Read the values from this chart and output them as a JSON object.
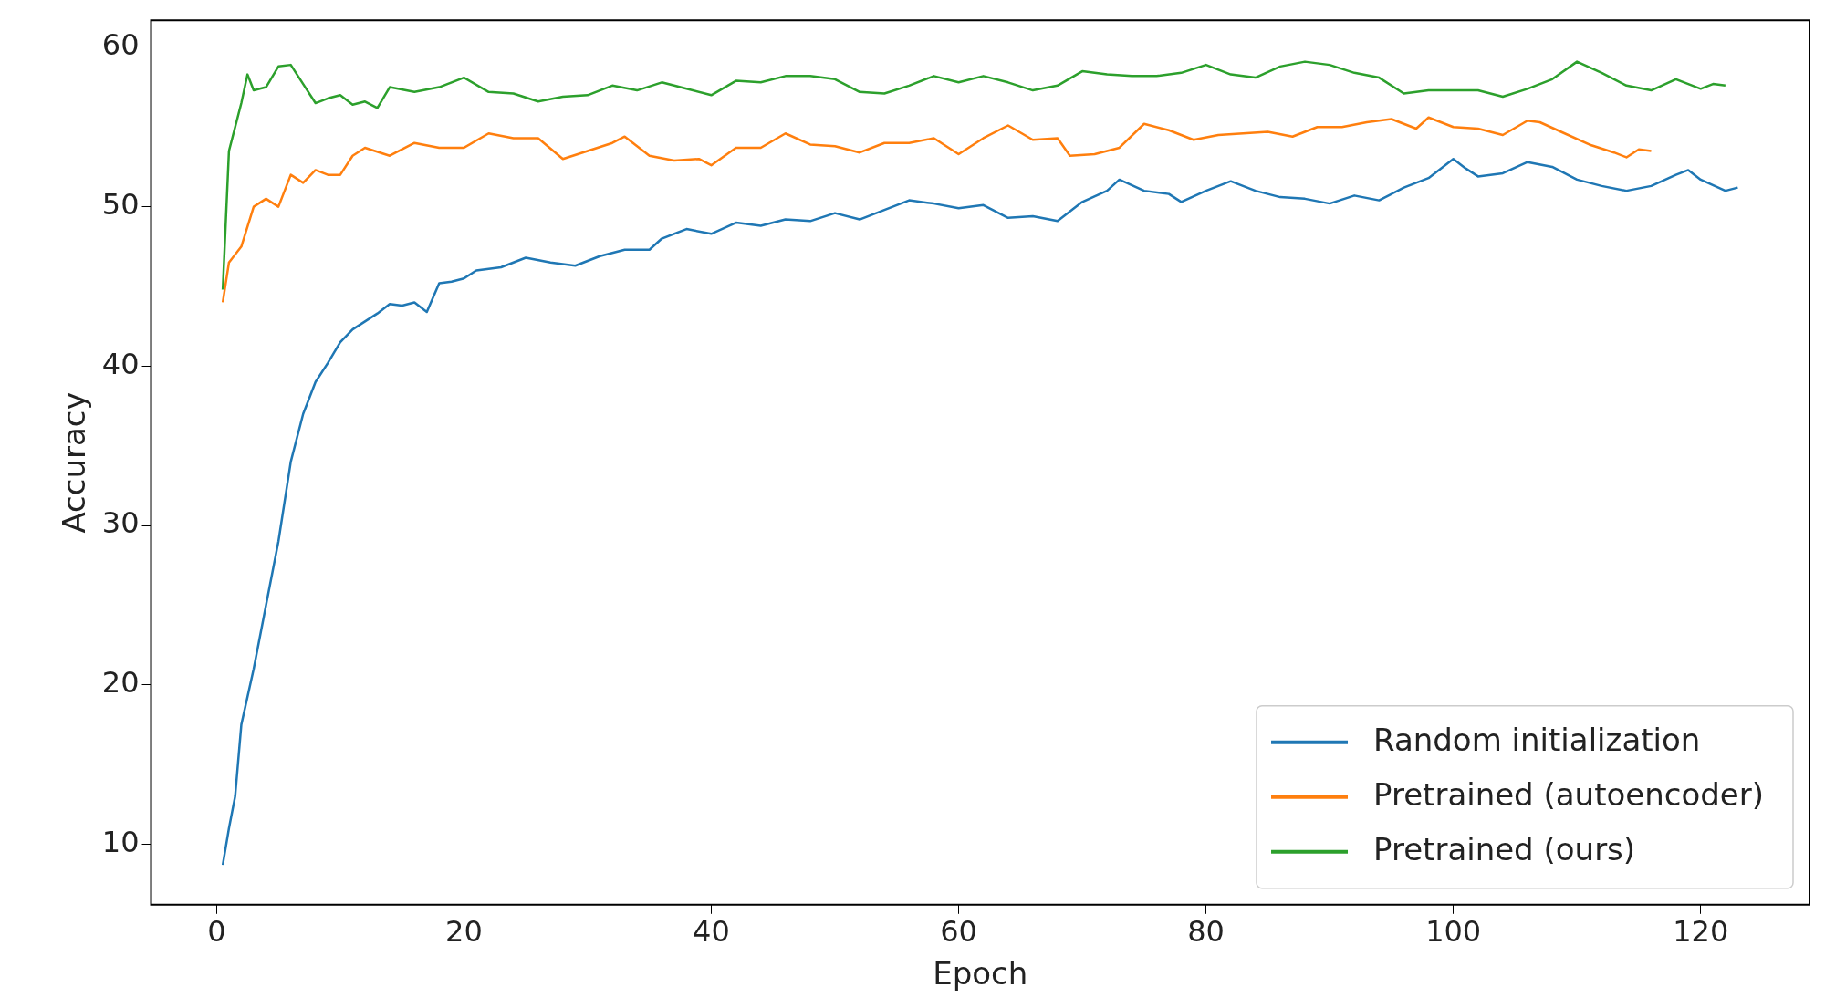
{
  "chart_data": {
    "type": "line",
    "xlabel": "Epoch",
    "ylabel": "Accuracy",
    "xlim": [
      -5.3,
      128.8
    ],
    "ylim": [
      6.2,
      61.7
    ],
    "xticks": [
      0,
      20,
      40,
      60,
      80,
      100,
      120
    ],
    "yticks": [
      10,
      20,
      30,
      40,
      50,
      60
    ],
    "grid": false,
    "legend": "bottom right",
    "marker": "none",
    "line_style": "solid",
    "series": [
      {
        "name": "Random initialization",
        "color": "#1f77b4",
        "x": [
          0.5,
          1,
          1.5,
          2,
          3,
          4,
          5,
          6,
          7,
          8,
          9,
          10,
          11,
          12,
          13,
          14,
          15,
          16,
          17,
          18,
          19,
          20,
          21,
          23,
          25,
          27,
          29,
          31,
          33,
          35,
          36,
          38,
          40,
          42,
          44,
          46,
          48,
          50,
          52,
          54,
          56,
          58,
          60,
          62,
          64,
          66,
          68,
          70,
          72,
          73,
          75,
          77,
          78,
          80,
          82,
          84,
          86,
          88,
          90,
          92,
          94,
          96,
          98,
          100,
          101,
          102,
          104,
          106,
          108,
          110,
          112,
          114,
          116,
          118,
          119,
          120,
          122,
          123
        ],
        "values": [
          8.7,
          11,
          13,
          17.5,
          21,
          25,
          29,
          34,
          37,
          39,
          40.2,
          41.5,
          42.3,
          42.8,
          43.3,
          43.9,
          43.8,
          44,
          43.4,
          45.2,
          45.3,
          45.5,
          46,
          46.2,
          46.8,
          46.5,
          46.3,
          46.9,
          47.3,
          47.3,
          48,
          48.6,
          48.3,
          49,
          48.8,
          49.2,
          49.1,
          49.6,
          49.2,
          49.8,
          50.4,
          50.2,
          49.9,
          50.1,
          49.3,
          49.4,
          49.1,
          50.3,
          51,
          51.7,
          51,
          50.8,
          50.3,
          51,
          51.6,
          51,
          50.6,
          50.5,
          50.2,
          50.7,
          50.4,
          51.2,
          51.8,
          53,
          52.4,
          51.9,
          52.1,
          52.8,
          52.5,
          51.7,
          51.3,
          51,
          51.3,
          52,
          52.3,
          51.7,
          51,
          51.2
        ]
      },
      {
        "name": "Pretrained (autoencoder)",
        "color": "#ff7f0e",
        "x": [
          0.5,
          1,
          2,
          3,
          4,
          5,
          6,
          7,
          8,
          9,
          10,
          11,
          12,
          14,
          16,
          18,
          20,
          22,
          24,
          26,
          28,
          30,
          32,
          33,
          35,
          37,
          39,
          40,
          42,
          44,
          46,
          48,
          50,
          52,
          54,
          56,
          58,
          60,
          62,
          64,
          66,
          68,
          69,
          71,
          73,
          75,
          77,
          79,
          81,
          83,
          85,
          87,
          89,
          91,
          93,
          95,
          97,
          98,
          100,
          102,
          104,
          106,
          107,
          109,
          111,
          113,
          114,
          115,
          116
        ],
        "values": [
          44,
          46.5,
          47.5,
          50,
          50.5,
          50,
          52,
          51.5,
          52.3,
          52,
          52,
          53.2,
          53.7,
          53.2,
          54,
          53.7,
          53.7,
          54.6,
          54.3,
          54.3,
          53,
          53.5,
          54,
          54.4,
          53.2,
          52.9,
          53,
          52.6,
          53.7,
          53.7,
          54.6,
          53.9,
          53.8,
          53.4,
          54,
          54,
          54.3,
          53.3,
          54.3,
          55.1,
          54.2,
          54.3,
          53.2,
          53.3,
          53.7,
          55.2,
          54.8,
          54.2,
          54.5,
          54.6,
          54.7,
          54.4,
          55,
          55,
          55.3,
          55.5,
          54.9,
          55.6,
          55,
          54.9,
          54.5,
          55.4,
          55.3,
          54.6,
          53.9,
          53.4,
          53.1,
          53.6,
          53.5
        ]
      },
      {
        "name": "Pretrained (ours)",
        "color": "#2ca02c",
        "x": [
          0.5,
          1,
          2,
          2.5,
          3,
          4,
          5,
          6,
          7,
          8,
          9,
          10,
          11,
          12,
          13,
          14,
          16,
          18,
          20,
          22,
          24,
          26,
          28,
          30,
          32,
          34,
          36,
          38,
          40,
          42,
          44,
          46,
          48,
          50,
          52,
          54,
          56,
          58,
          60,
          62,
          64,
          66,
          68,
          70,
          72,
          74,
          76,
          78,
          80,
          82,
          84,
          86,
          88,
          90,
          92,
          94,
          96,
          98,
          100,
          102,
          104,
          106,
          108,
          110,
          112,
          114,
          116,
          118,
          120,
          121,
          122
        ],
        "values": [
          44.8,
          53.5,
          56.5,
          58.3,
          57.3,
          57.5,
          58.8,
          58.9,
          57.7,
          56.5,
          56.8,
          57,
          56.4,
          56.6,
          56.2,
          57.5,
          57.2,
          57.5,
          58.1,
          57.2,
          57.1,
          56.6,
          56.9,
          57,
          57.6,
          57.3,
          57.8,
          57.4,
          57,
          57.9,
          57.8,
          58.2,
          58.2,
          58,
          57.2,
          57.1,
          57.6,
          58.2,
          57.8,
          58.2,
          57.8,
          57.3,
          57.6,
          58.5,
          58.3,
          58.2,
          58.2,
          58.4,
          58.9,
          58.3,
          58.1,
          58.8,
          59.1,
          58.9,
          58.4,
          58.1,
          57.1,
          57.3,
          57.3,
          57.3,
          56.9,
          57.4,
          58,
          59.1,
          58.4,
          57.6,
          57.3,
          58,
          57.4,
          57.7,
          57.6
        ]
      }
    ]
  }
}
